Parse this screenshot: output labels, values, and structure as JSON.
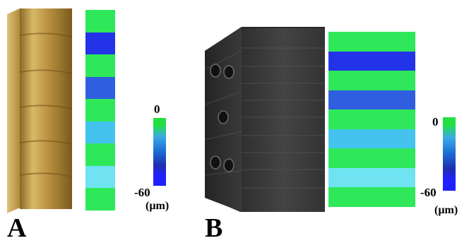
{
  "panels": [
    {
      "letter": "A",
      "object": "gold-rod",
      "scale": {
        "max_label": "0",
        "min_label": "-60",
        "unit_label": "(µm)"
      },
      "bands": [
        "#2ee85a",
        "#2334e8",
        "#2ee85a",
        "#2f5fe0",
        "#2ee85a",
        "#44c3ee",
        "#2ee85a",
        "#6fe3f2",
        "#2ee85a"
      ]
    },
    {
      "letter": "B",
      "object": "dark-block",
      "scale": {
        "max_label": "0",
        "min_label": "-60",
        "unit_label": "(µm)"
      },
      "bands": [
        "#2ee85a",
        "#2334e8",
        "#2ee85a",
        "#2f5fe0",
        "#2ee85a",
        "#44c3ee",
        "#2ee85a",
        "#6fe3f2",
        "#2ee85a"
      ]
    }
  ],
  "colors": {
    "green": "#2ee85a",
    "deep_blue": "#2334e8",
    "blue": "#2f5fe0",
    "cyan": "#44c3ee",
    "light_cyan": "#6fe3f2",
    "gold": "#c9a24e",
    "dark_block": "#3a3a3a"
  }
}
